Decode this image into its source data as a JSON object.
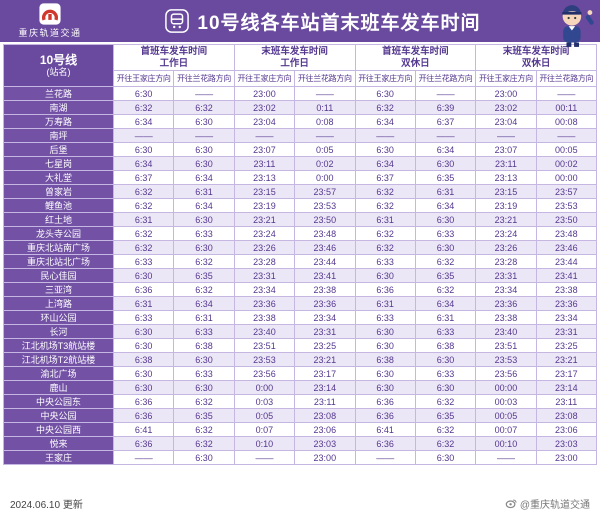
{
  "header": {
    "brand": "重庆轨道交通",
    "title": "10号线各车站首末班车发车时间"
  },
  "table": {
    "line_label": "10号线",
    "line_sublabel": "(站名)",
    "groups": [
      {
        "line1": "首班车发车时间",
        "line2": "工作日"
      },
      {
        "line1": "末班车发车时间",
        "line2": "工作日"
      },
      {
        "line1": "首班车发车时间",
        "line2": "双休日"
      },
      {
        "line1": "末班车发车时间",
        "line2": "双休日"
      }
    ],
    "direction_headers": [
      "开往王家庄方向",
      "开往兰花路方向"
    ],
    "rows": [
      {
        "station": "兰花路",
        "times": [
          "6:30",
          "——",
          "23:00",
          "——",
          "6:30",
          "——",
          "23:00",
          "——"
        ]
      },
      {
        "station": "南湖",
        "times": [
          "6:32",
          "6:32",
          "23:02",
          "0:11",
          "6:32",
          "6:39",
          "23:02",
          "00:11"
        ]
      },
      {
        "station": "万寿路",
        "times": [
          "6:34",
          "6:30",
          "23:04",
          "0:08",
          "6:34",
          "6:37",
          "23:04",
          "00:08"
        ]
      },
      {
        "station": "南坪",
        "times": [
          "——",
          "——",
          "——",
          "——",
          "——",
          "——",
          "——",
          "——"
        ]
      },
      {
        "station": "后堡",
        "times": [
          "6:30",
          "6:30",
          "23:07",
          "0:05",
          "6:30",
          "6:34",
          "23:07",
          "00:05"
        ]
      },
      {
        "station": "七星岗",
        "times": [
          "6:34",
          "6:30",
          "23:11",
          "0:02",
          "6:34",
          "6:30",
          "23:11",
          "00:02"
        ]
      },
      {
        "station": "大礼堂",
        "times": [
          "6:37",
          "6:34",
          "23:13",
          "0:00",
          "6:37",
          "6:35",
          "23:13",
          "00:00"
        ]
      },
      {
        "station": "曾家岩",
        "times": [
          "6:32",
          "6:31",
          "23:15",
          "23:57",
          "6:32",
          "6:31",
          "23:15",
          "23:57"
        ]
      },
      {
        "station": "鲤鱼池",
        "times": [
          "6:32",
          "6:34",
          "23:19",
          "23:53",
          "6:32",
          "6:34",
          "23:19",
          "23:53"
        ]
      },
      {
        "station": "红土地",
        "times": [
          "6:31",
          "6:30",
          "23:21",
          "23:50",
          "6:31",
          "6:30",
          "23:21",
          "23:50"
        ]
      },
      {
        "station": "龙头寺公园",
        "times": [
          "6:32",
          "6:33",
          "23:24",
          "23:48",
          "6:32",
          "6:33",
          "23:24",
          "23:48"
        ]
      },
      {
        "station": "重庆北站南广场",
        "times": [
          "6:32",
          "6:30",
          "23:26",
          "23:46",
          "6:32",
          "6:30",
          "23:26",
          "23:46"
        ]
      },
      {
        "station": "重庆北站北广场",
        "times": [
          "6:33",
          "6:32",
          "23:28",
          "23:44",
          "6:33",
          "6:32",
          "23:28",
          "23:44"
        ]
      },
      {
        "station": "民心佳园",
        "times": [
          "6:30",
          "6:35",
          "23:31",
          "23:41",
          "6:30",
          "6:35",
          "23:31",
          "23:41"
        ]
      },
      {
        "station": "三亚湾",
        "times": [
          "6:36",
          "6:32",
          "23:34",
          "23:38",
          "6:36",
          "6:32",
          "23:34",
          "23:38"
        ]
      },
      {
        "station": "上湾路",
        "times": [
          "6:31",
          "6:34",
          "23:36",
          "23:36",
          "6:31",
          "6:34",
          "23:36",
          "23:36"
        ]
      },
      {
        "station": "环山公园",
        "times": [
          "6:33",
          "6:31",
          "23:38",
          "23:34",
          "6:33",
          "6:31",
          "23:38",
          "23:34"
        ]
      },
      {
        "station": "长河",
        "times": [
          "6:30",
          "6:33",
          "23:40",
          "23:31",
          "6:30",
          "6:33",
          "23:40",
          "23:31"
        ]
      },
      {
        "station": "江北机场T3航站楼",
        "times": [
          "6:30",
          "6:38",
          "23:51",
          "23:25",
          "6:30",
          "6:38",
          "23:51",
          "23:25"
        ]
      },
      {
        "station": "江北机场T2航站楼",
        "times": [
          "6:38",
          "6:30",
          "23:53",
          "23:21",
          "6:38",
          "6:30",
          "23:53",
          "23:21"
        ]
      },
      {
        "station": "渝北广场",
        "times": [
          "6:30",
          "6:33",
          "23:56",
          "23:17",
          "6:30",
          "6:33",
          "23:56",
          "23:17"
        ]
      },
      {
        "station": "鹿山",
        "times": [
          "6:30",
          "6:30",
          "0:00",
          "23:14",
          "6:30",
          "6:30",
          "00:00",
          "23:14"
        ]
      },
      {
        "station": "中央公园东",
        "times": [
          "6:36",
          "6:32",
          "0:03",
          "23:11",
          "6:36",
          "6:32",
          "00:03",
          "23:11"
        ]
      },
      {
        "station": "中央公园",
        "times": [
          "6:36",
          "6:35",
          "0:05",
          "23:08",
          "6:36",
          "6:35",
          "00:05",
          "23:08"
        ]
      },
      {
        "station": "中央公园西",
        "times": [
          "6:41",
          "6:32",
          "0:07",
          "23:06",
          "6:41",
          "6:32",
          "00:07",
          "23:06"
        ]
      },
      {
        "station": "悦来",
        "times": [
          "6:36",
          "6:32",
          "0:10",
          "23:03",
          "6:36",
          "6:32",
          "00:10",
          "23:03"
        ]
      },
      {
        "station": "王家庄",
        "times": [
          "——",
          "6:30",
          "——",
          "23:00",
          "——",
          "6:30",
          "——",
          "23:00"
        ]
      }
    ]
  },
  "footer": {
    "updated": "2024.06.10 更新",
    "credit": "@重庆轨道交通"
  },
  "colors": {
    "purple_bar": "#6a4a9e",
    "station_column": "#7352a6",
    "row_band": "#ece7f6",
    "text_purple": "#54378f",
    "border": "#c6b6e2",
    "logo_red": "#d0372e"
  },
  "icons": {
    "emblem": "crt-logo-icon",
    "title_icon": "train-front-icon",
    "mascot": "metro-mascot-figure",
    "credit_icon": "weibo-icon"
  }
}
